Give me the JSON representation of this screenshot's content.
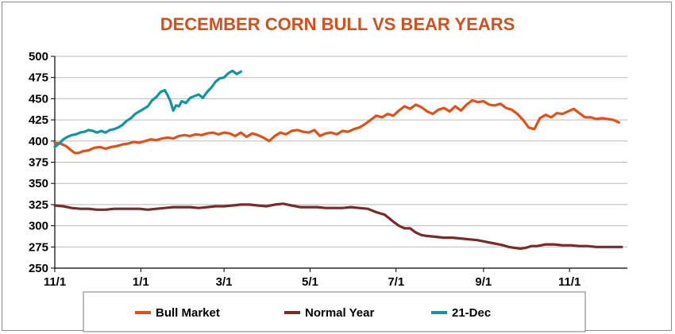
{
  "chart_data": {
    "type": "line",
    "title": "DECEMBER CORN BULL VS BEAR YEARS",
    "xlabel": "",
    "ylabel": "",
    "x_ticks": [
      "11/1",
      "1/1",
      "3/1",
      "5/1",
      "7/1",
      "9/1",
      "11/1"
    ],
    "x_tick_days": [
      0,
      61,
      120,
      181,
      242,
      304,
      365
    ],
    "xlim_days": [
      0,
      406
    ],
    "y_ticks": [
      "250",
      "275",
      "300",
      "325",
      "350",
      "375",
      "400",
      "425",
      "450",
      "475",
      "500"
    ],
    "ylim": [
      250,
      500
    ],
    "grid": true,
    "legend": "bottom",
    "series": [
      {
        "name": "Bull Market",
        "color": "#e0501a",
        "points": [
          [
            0,
            398
          ],
          [
            4,
            397
          ],
          [
            8,
            394
          ],
          [
            11,
            390
          ],
          [
            14,
            386
          ],
          [
            17,
            386
          ],
          [
            20,
            388
          ],
          [
            24,
            389
          ],
          [
            28,
            392
          ],
          [
            32,
            393
          ],
          [
            36,
            391
          ],
          [
            40,
            393
          ],
          [
            44,
            394
          ],
          [
            48,
            396
          ],
          [
            52,
            397
          ],
          [
            56,
            399
          ],
          [
            60,
            398
          ],
          [
            64,
            400
          ],
          [
            68,
            402
          ],
          [
            72,
            401
          ],
          [
            76,
            403
          ],
          [
            80,
            404
          ],
          [
            84,
            403
          ],
          [
            88,
            406
          ],
          [
            92,
            407
          ],
          [
            96,
            406
          ],
          [
            100,
            408
          ],
          [
            104,
            407
          ],
          [
            108,
            409
          ],
          [
            112,
            410
          ],
          [
            116,
            408
          ],
          [
            120,
            410
          ],
          [
            124,
            409
          ],
          [
            128,
            406
          ],
          [
            132,
            410
          ],
          [
            136,
            405
          ],
          [
            140,
            409
          ],
          [
            144,
            407
          ],
          [
            148,
            404
          ],
          [
            152,
            400
          ],
          [
            156,
            406
          ],
          [
            160,
            410
          ],
          [
            164,
            408
          ],
          [
            168,
            412
          ],
          [
            172,
            413
          ],
          [
            176,
            411
          ],
          [
            180,
            410
          ],
          [
            184,
            413
          ],
          [
            188,
            406
          ],
          [
            192,
            409
          ],
          [
            196,
            410
          ],
          [
            200,
            408
          ],
          [
            204,
            412
          ],
          [
            208,
            411
          ],
          [
            212,
            414
          ],
          [
            216,
            416
          ],
          [
            220,
            420
          ],
          [
            224,
            425
          ],
          [
            228,
            430
          ],
          [
            232,
            428
          ],
          [
            236,
            432
          ],
          [
            240,
            430
          ],
          [
            244,
            436
          ],
          [
            248,
            441
          ],
          [
            252,
            438
          ],
          [
            256,
            443
          ],
          [
            260,
            440
          ],
          [
            264,
            435
          ],
          [
            268,
            432
          ],
          [
            272,
            437
          ],
          [
            276,
            439
          ],
          [
            280,
            435
          ],
          [
            284,
            441
          ],
          [
            288,
            436
          ],
          [
            292,
            443
          ],
          [
            296,
            448
          ],
          [
            300,
            446
          ],
          [
            304,
            447
          ],
          [
            308,
            443
          ],
          [
            312,
            442
          ],
          [
            316,
            444
          ],
          [
            320,
            439
          ],
          [
            324,
            437
          ],
          [
            328,
            432
          ],
          [
            332,
            425
          ],
          [
            336,
            416
          ],
          [
            340,
            414
          ],
          [
            344,
            427
          ],
          [
            348,
            431
          ],
          [
            352,
            428
          ],
          [
            356,
            433
          ],
          [
            360,
            432
          ],
          [
            364,
            435
          ],
          [
            368,
            438
          ],
          [
            372,
            433
          ],
          [
            376,
            428
          ],
          [
            380,
            428
          ],
          [
            384,
            426
          ],
          [
            388,
            427
          ],
          [
            392,
            426
          ],
          [
            396,
            425
          ],
          [
            400,
            422
          ]
        ]
      },
      {
        "name": "Normal Year",
        "color": "#7a2a2a",
        "points": [
          [
            0,
            324
          ],
          [
            6,
            323
          ],
          [
            12,
            321
          ],
          [
            18,
            320
          ],
          [
            24,
            320
          ],
          [
            30,
            319
          ],
          [
            36,
            319
          ],
          [
            42,
            320
          ],
          [
            48,
            320
          ],
          [
            54,
            320
          ],
          [
            60,
            320
          ],
          [
            66,
            319
          ],
          [
            72,
            320
          ],
          [
            78,
            321
          ],
          [
            84,
            322
          ],
          [
            90,
            322
          ],
          [
            96,
            322
          ],
          [
            102,
            321
          ],
          [
            108,
            322
          ],
          [
            114,
            323
          ],
          [
            120,
            323
          ],
          [
            126,
            324
          ],
          [
            132,
            325
          ],
          [
            138,
            325
          ],
          [
            144,
            324
          ],
          [
            150,
            323
          ],
          [
            156,
            325
          ],
          [
            162,
            326
          ],
          [
            168,
            324
          ],
          [
            174,
            322
          ],
          [
            180,
            322
          ],
          [
            186,
            322
          ],
          [
            192,
            321
          ],
          [
            198,
            321
          ],
          [
            204,
            321
          ],
          [
            210,
            322
          ],
          [
            216,
            321
          ],
          [
            222,
            320
          ],
          [
            228,
            316
          ],
          [
            234,
            313
          ],
          [
            240,
            305
          ],
          [
            244,
            300
          ],
          [
            248,
            297
          ],
          [
            252,
            297
          ],
          [
            256,
            292
          ],
          [
            260,
            289
          ],
          [
            264,
            288
          ],
          [
            270,
            287
          ],
          [
            276,
            286
          ],
          [
            282,
            286
          ],
          [
            288,
            285
          ],
          [
            294,
            284
          ],
          [
            300,
            283
          ],
          [
            306,
            281
          ],
          [
            312,
            279
          ],
          [
            318,
            277
          ],
          [
            322,
            275
          ],
          [
            326,
            274
          ],
          [
            330,
            273
          ],
          [
            334,
            274
          ],
          [
            338,
            276
          ],
          [
            342,
            276
          ],
          [
            348,
            278
          ],
          [
            354,
            278
          ],
          [
            360,
            277
          ],
          [
            366,
            277
          ],
          [
            372,
            276
          ],
          [
            378,
            276
          ],
          [
            384,
            275
          ],
          [
            390,
            275
          ],
          [
            396,
            275
          ],
          [
            402,
            275
          ]
        ]
      },
      {
        "name": "21-Dec",
        "color": "#13959e",
        "points": [
          [
            0,
            393
          ],
          [
            3,
            397
          ],
          [
            6,
            402
          ],
          [
            9,
            405
          ],
          [
            12,
            407
          ],
          [
            15,
            408
          ],
          [
            18,
            410
          ],
          [
            21,
            411
          ],
          [
            24,
            413
          ],
          [
            27,
            412
          ],
          [
            30,
            410
          ],
          [
            33,
            412
          ],
          [
            36,
            410
          ],
          [
            39,
            413
          ],
          [
            42,
            414
          ],
          [
            45,
            416
          ],
          [
            48,
            419
          ],
          [
            51,
            424
          ],
          [
            54,
            427
          ],
          [
            57,
            432
          ],
          [
            60,
            435
          ],
          [
            63,
            438
          ],
          [
            66,
            441
          ],
          [
            69,
            448
          ],
          [
            72,
            452
          ],
          [
            75,
            458
          ],
          [
            78,
            460
          ],
          [
            80,
            454
          ],
          [
            82,
            447
          ],
          [
            84,
            436
          ],
          [
            86,
            442
          ],
          [
            88,
            441
          ],
          [
            90,
            447
          ],
          [
            93,
            445
          ],
          [
            96,
            451
          ],
          [
            99,
            453
          ],
          [
            102,
            455
          ],
          [
            105,
            451
          ],
          [
            108,
            458
          ],
          [
            111,
            463
          ],
          [
            114,
            470
          ],
          [
            117,
            474
          ],
          [
            120,
            475
          ],
          [
            123,
            480
          ],
          [
            126,
            483
          ],
          [
            129,
            479
          ],
          [
            132,
            482
          ]
        ]
      }
    ]
  }
}
